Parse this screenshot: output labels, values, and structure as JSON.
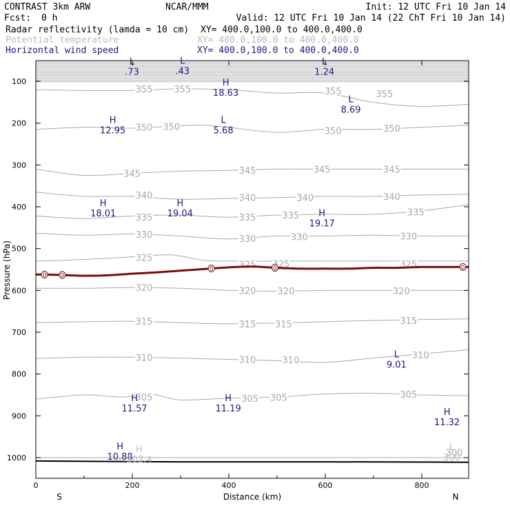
{
  "header": {
    "title": "CONTRAST  3km ARW",
    "org": "NCAR/MMM",
    "init": "Init: 12 UTC Fri 10 Jan 14",
    "fcst_label": "Fcst:",
    "fcst_value": "0 h",
    "valid": "Valid: 12 UTC Fri 10 Jan 14 (22 ChT Fri 10 Jan 14)",
    "fields": [
      {
        "name": "Radar reflectivity (lamda = 10 cm)",
        "xy": "XY= 400.0,100.0 to 400.0,400.0",
        "color": "#000000"
      },
      {
        "name": "Potential temperature",
        "xy": "XY= 400.0,100.0 to 400.0,400.0",
        "color": "#bbbbbb"
      },
      {
        "name": "Horizontal wind speed",
        "xy": "XY= 400.0,100.0 to 400.0,400.0",
        "color": "#1a1a80"
      }
    ]
  },
  "colors": {
    "theta": "#a8a8a8",
    "wind": "#1a1a80",
    "reflectivity": "#7a0a0a",
    "ground": "#000000"
  },
  "chart_data": {
    "type": "line",
    "title": "Vertical cross section",
    "xlabel": "Distance (km)",
    "ylabel": "Pressure (hPa)",
    "xlim": [
      0,
      900
    ],
    "ylim": [
      1050,
      50
    ],
    "x_ticks": [
      0,
      200,
      400,
      600,
      800
    ],
    "y_ticks": [
      100,
      200,
      300,
      400,
      500,
      600,
      700,
      800,
      900,
      1000
    ],
    "end_labels": {
      "left": "S",
      "right": "N"
    },
    "theta_contours": [
      {
        "level": 300,
        "points": [
          [
            0,
            1000
          ],
          [
            900,
            1000
          ]
        ]
      },
      {
        "level": 305,
        "points": [
          [
            0,
            860
          ],
          [
            100,
            850
          ],
          [
            180,
            855
          ],
          [
            240,
            848
          ],
          [
            300,
            862
          ],
          [
            400,
            858
          ],
          [
            500,
            855
          ],
          [
            600,
            848
          ],
          [
            700,
            846
          ],
          [
            800,
            850
          ],
          [
            900,
            852
          ]
        ]
      },
      {
        "level": 310,
        "points": [
          [
            0,
            763
          ],
          [
            100,
            760
          ],
          [
            200,
            760
          ],
          [
            300,
            762
          ],
          [
            400,
            765
          ],
          [
            500,
            768
          ],
          [
            600,
            772
          ],
          [
            700,
            762
          ],
          [
            800,
            752
          ],
          [
            900,
            742
          ]
        ]
      },
      {
        "level": 315,
        "points": [
          [
            0,
            677
          ],
          [
            100,
            675
          ],
          [
            200,
            674
          ],
          [
            300,
            677
          ],
          [
            400,
            680
          ],
          [
            500,
            678
          ],
          [
            600,
            675
          ],
          [
            700,
            672
          ],
          [
            800,
            670
          ],
          [
            900,
            668
          ]
        ]
      },
      {
        "level": 320,
        "points": [
          [
            0,
            595
          ],
          [
            100,
            595
          ],
          [
            200,
            593
          ],
          [
            300,
            595
          ],
          [
            400,
            600
          ],
          [
            500,
            602
          ],
          [
            600,
            600
          ],
          [
            700,
            600
          ],
          [
            800,
            600
          ],
          [
            900,
            600
          ]
        ]
      },
      {
        "level": 325,
        "points": [
          [
            0,
            530
          ],
          [
            100,
            526
          ],
          [
            200,
            520
          ],
          [
            280,
            515
          ],
          [
            350,
            528
          ],
          [
            420,
            530
          ],
          [
            500,
            530
          ],
          [
            600,
            530
          ],
          [
            700,
            530
          ],
          [
            800,
            530
          ],
          [
            900,
            530
          ]
        ]
      },
      {
        "level": 330,
        "points": [
          [
            0,
            463
          ],
          [
            100,
            468
          ],
          [
            200,
            465
          ],
          [
            300,
            470
          ],
          [
            400,
            477
          ],
          [
            500,
            470
          ],
          [
            600,
            470
          ],
          [
            700,
            468
          ],
          [
            800,
            470
          ],
          [
            900,
            470
          ]
        ]
      },
      {
        "level": 335,
        "points": [
          [
            0,
            422
          ],
          [
            100,
            428
          ],
          [
            200,
            422
          ],
          [
            300,
            420
          ],
          [
            400,
            425
          ],
          [
            500,
            420
          ],
          [
            600,
            418
          ],
          [
            700,
            418
          ],
          [
            800,
            410
          ],
          [
            900,
            395
          ]
        ]
      },
      {
        "level": 340,
        "points": [
          [
            0,
            365
          ],
          [
            100,
            375
          ],
          [
            200,
            375
          ],
          [
            300,
            382
          ],
          [
            400,
            380
          ],
          [
            500,
            378
          ],
          [
            600,
            375
          ],
          [
            700,
            375
          ],
          [
            800,
            372
          ],
          [
            900,
            370
          ]
        ]
      },
      {
        "level": 345,
        "points": [
          [
            0,
            310
          ],
          [
            100,
            325
          ],
          [
            200,
            320
          ],
          [
            300,
            315
          ],
          [
            400,
            313
          ],
          [
            500,
            310
          ],
          [
            600,
            310
          ],
          [
            700,
            310
          ],
          [
            800,
            310
          ],
          [
            900,
            310
          ]
        ]
      },
      {
        "level": 350,
        "points": [
          [
            0,
            215
          ],
          [
            100,
            210
          ],
          [
            200,
            212
          ],
          [
            300,
            206
          ],
          [
            350,
            205
          ],
          [
            400,
            210
          ],
          [
            500,
            222
          ],
          [
            600,
            215
          ],
          [
            700,
            215
          ],
          [
            800,
            210
          ],
          [
            900,
            205
          ]
        ]
      },
      {
        "level": 355,
        "points": [
          [
            0,
            120
          ],
          [
            100,
            122
          ],
          [
            200,
            122
          ],
          [
            300,
            118
          ],
          [
            400,
            120
          ],
          [
            500,
            128
          ],
          [
            600,
            128
          ],
          [
            700,
            150
          ],
          [
            800,
            160
          ],
          [
            900,
            155
          ]
        ]
      }
    ],
    "theta_labels": [
      {
        "text": "355",
        "x": 225,
        "p": 118
      },
      {
        "text": "355",
        "x": 305,
        "p": 118
      },
      {
        "text": "355",
        "x": 618,
        "p": 123
      },
      {
        "text": "355",
        "x": 725,
        "p": 130
      },
      {
        "text": "350",
        "x": 225,
        "p": 210
      },
      {
        "text": "350",
        "x": 282,
        "p": 208
      },
      {
        "text": "350",
        "x": 618,
        "p": 218
      },
      {
        "text": "350",
        "x": 740,
        "p": 212
      },
      {
        "text": "345",
        "x": 200,
        "p": 320
      },
      {
        "text": "345",
        "x": 440,
        "p": 313
      },
      {
        "text": "345",
        "x": 595,
        "p": 310
      },
      {
        "text": "345",
        "x": 740,
        "p": 310
      },
      {
        "text": "340",
        "x": 225,
        "p": 372
      },
      {
        "text": "340",
        "x": 440,
        "p": 378
      },
      {
        "text": "340",
        "x": 560,
        "p": 378
      },
      {
        "text": "340",
        "x": 740,
        "p": 375
      },
      {
        "text": "335",
        "x": 225,
        "p": 425
      },
      {
        "text": "335",
        "x": 440,
        "p": 425
      },
      {
        "text": "335",
        "x": 530,
        "p": 420
      },
      {
        "text": "335",
        "x": 790,
        "p": 412
      },
      {
        "text": "330",
        "x": 225,
        "p": 466
      },
      {
        "text": "330",
        "x": 440,
        "p": 476
      },
      {
        "text": "330",
        "x": 548,
        "p": 472
      },
      {
        "text": "330",
        "x": 775,
        "p": 470
      },
      {
        "text": "325",
        "x": 225,
        "p": 521
      },
      {
        "text": "325",
        "x": 440,
        "p": 538
      },
      {
        "text": "325",
        "x": 510,
        "p": 536
      },
      {
        "text": "325",
        "x": 775,
        "p": 537
      },
      {
        "text": "320",
        "x": 225,
        "p": 593
      },
      {
        "text": "320",
        "x": 440,
        "p": 600
      },
      {
        "text": "320",
        "x": 520,
        "p": 601
      },
      {
        "text": "320",
        "x": 760,
        "p": 601
      },
      {
        "text": "315",
        "x": 225,
        "p": 674
      },
      {
        "text": "315",
        "x": 440,
        "p": 680
      },
      {
        "text": "315",
        "x": 515,
        "p": 680
      },
      {
        "text": "315",
        "x": 775,
        "p": 672
      },
      {
        "text": "310",
        "x": 225,
        "p": 760
      },
      {
        "text": "310",
        "x": 440,
        "p": 765
      },
      {
        "text": "310",
        "x": 530,
        "p": 766
      },
      {
        "text": "310",
        "x": 800,
        "p": 754
      },
      {
        "text": "305",
        "x": 225,
        "p": 855
      },
      {
        "text": "305",
        "x": 445,
        "p": 858
      },
      {
        "text": "305",
        "x": 505,
        "p": 856
      },
      {
        "text": "305",
        "x": 775,
        "p": 848
      },
      {
        "text": "300",
        "x": 870,
        "p": 988
      }
    ],
    "wind_extrema": [
      {
        "kind": "L",
        "value": ".73",
        "x": 200,
        "p": 60
      },
      {
        "kind": "L",
        "value": ".43",
        "x": 305,
        "p": 58
      },
      {
        "kind": "L",
        "value": "1.24",
        "x": 600,
        "p": 60
      },
      {
        "kind": "H",
        "value": "18.63",
        "x": 395,
        "p": 110
      },
      {
        "kind": "L",
        "value": "8.69",
        "x": 655,
        "p": 150
      },
      {
        "kind": "H",
        "value": "12.95",
        "x": 160,
        "p": 200
      },
      {
        "kind": "L",
        "value": "5.68",
        "x": 390,
        "p": 200
      },
      {
        "kind": "H",
        "value": "18.01",
        "x": 140,
        "p": 398
      },
      {
        "kind": "H",
        "value": "19.04",
        "x": 300,
        "p": 398
      },
      {
        "kind": "H",
        "value": "19.17",
        "x": 595,
        "p": 422
      },
      {
        "kind": "L",
        "value": "9.01",
        "x": 750,
        "p": 760
      },
      {
        "kind": "H",
        "value": "11.57",
        "x": 205,
        "p": 865
      },
      {
        "kind": "H",
        "value": "11.19",
        "x": 400,
        "p": 865
      },
      {
        "kind": "H",
        "value": "11.32",
        "x": 855,
        "p": 898
      },
      {
        "kind": "H",
        "value": "10.88",
        "x": 175,
        "p": 980
      }
    ],
    "theta_extrema": [
      {
        "kind": "H",
        "value": "302.4",
        "x": 215,
        "p": 990
      },
      {
        "kind": "L",
        "value": "300",
        "x": 865,
        "p": 985
      }
    ],
    "reflectivity_contour": {
      "level": 0,
      "points": [
        [
          0,
          562
        ],
        [
          50,
          563
        ],
        [
          100,
          565
        ],
        [
          150,
          564
        ],
        [
          200,
          560
        ],
        [
          250,
          557
        ],
        [
          300,
          553
        ],
        [
          350,
          549
        ],
        [
          400,
          545
        ],
        [
          450,
          543
        ],
        [
          500,
          546
        ],
        [
          550,
          548
        ],
        [
          600,
          548
        ],
        [
          650,
          548
        ],
        [
          700,
          546
        ],
        [
          750,
          546
        ],
        [
          800,
          544
        ],
        [
          850,
          544
        ],
        [
          900,
          544
        ]
      ],
      "markers": [
        {
          "text": "0",
          "x": 18
        },
        {
          "text": "0",
          "x": 55
        },
        {
          "text": "0",
          "x": 365
        },
        {
          "text": "0",
          "x": 497
        },
        {
          "text": "0",
          "x": 888
        }
      ]
    },
    "ground_pressure": [
      [
        0,
        1008
      ],
      [
        300,
        1010
      ],
      [
        600,
        1010
      ],
      [
        900,
        1011
      ]
    ]
  }
}
